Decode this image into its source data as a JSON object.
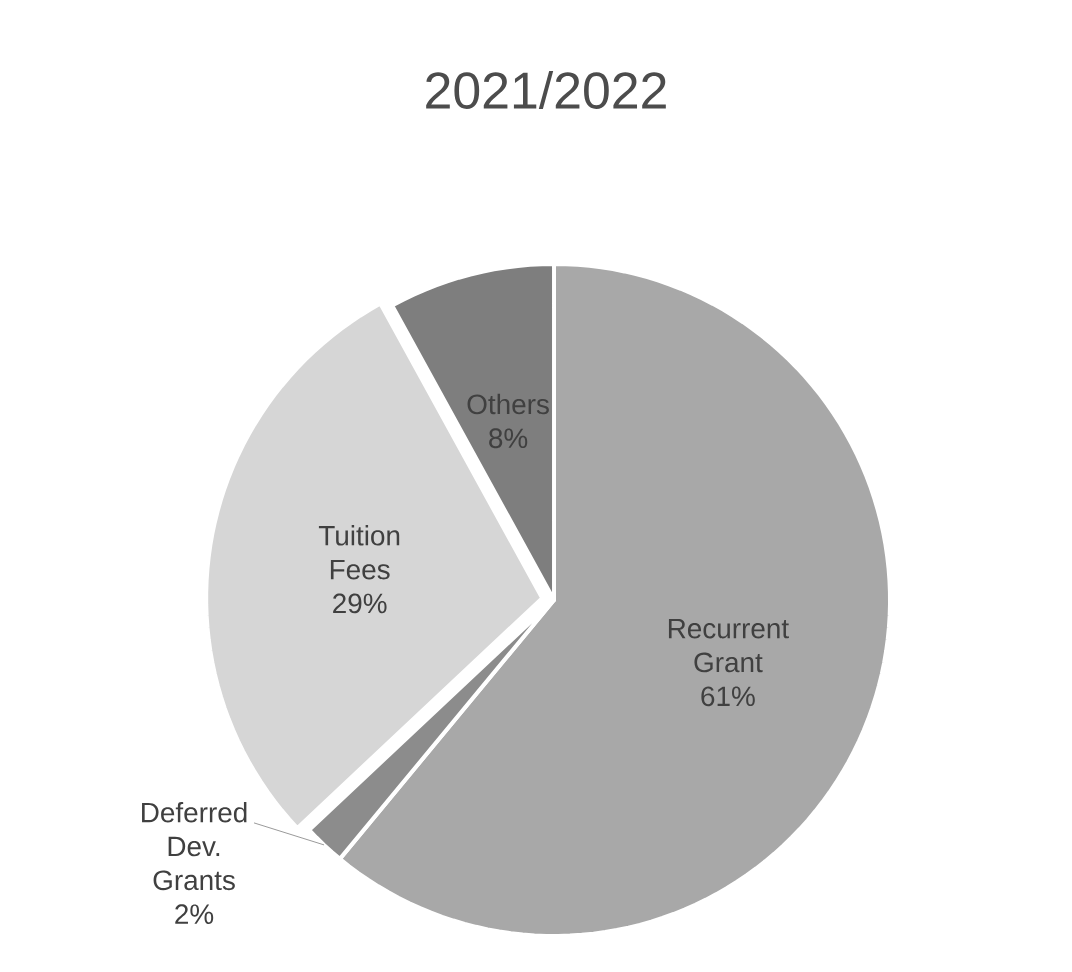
{
  "chart_data": {
    "type": "pie",
    "title": "2021/2022",
    "categories": [
      "Recurrent Grant",
      "Deferred Dev. Grants",
      "Tuition Fees",
      "Others"
    ],
    "values": [
      61,
      2,
      29,
      8
    ],
    "value_labels": [
      "61%",
      "2%",
      "29%",
      "8%"
    ],
    "colors": [
      "#a8a8a8",
      "#8c8c8c",
      "#d6d6d6",
      "#7e7e7e"
    ]
  }
}
